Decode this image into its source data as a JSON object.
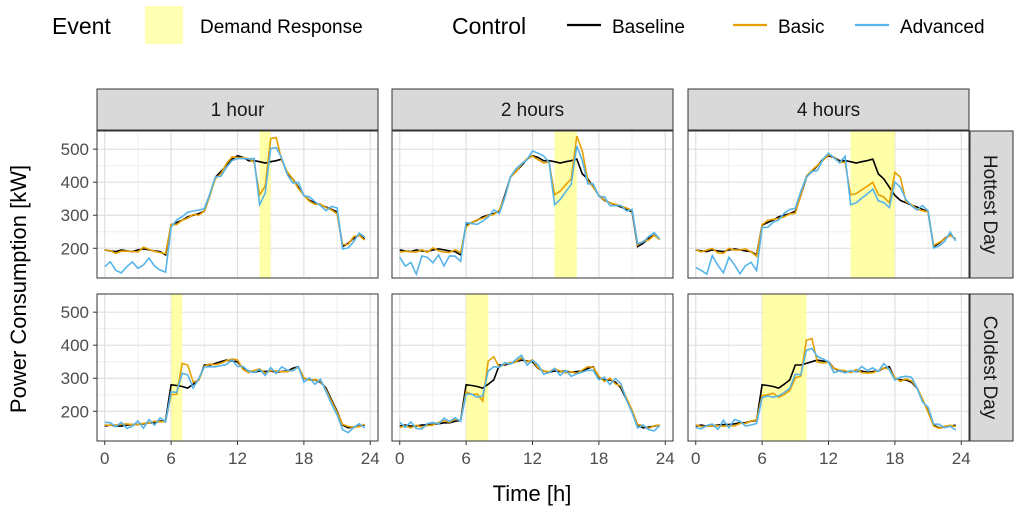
{
  "legend": {
    "event_title": "Event",
    "event_label": "Demand Response",
    "control_title": "Control",
    "items": [
      {
        "label": "Baseline",
        "color": "#000000"
      },
      {
        "label": "Basic",
        "color": "#E69F00"
      },
      {
        "label": "Advanced",
        "color": "#56B4E9"
      }
    ]
  },
  "chart_data": {
    "type": "line",
    "xlabel": "Time [h]",
    "ylabel": "Power Consumption [kW]",
    "xlim": [
      -0.7,
      24.7
    ],
    "ylim": [
      110,
      555
    ],
    "xticks": [
      0,
      6,
      12,
      18,
      24
    ],
    "yticks": [
      200,
      300,
      400,
      500
    ],
    "grid": true,
    "legend_position": "top",
    "event_color": "#FFFF99",
    "columns": [
      "1 hour",
      "2 hours",
      "4 hours"
    ],
    "rows": [
      "Hottest Day",
      "Coldest Day"
    ],
    "events": {
      "1 hour": [
        6,
        7
      ],
      "2 hours": [
        6,
        8
      ],
      "4 hours": [
        6,
        10
      ],
      "hot": {
        "1 hour": [
          14,
          15
        ],
        "2 hours": [
          14,
          16
        ],
        "4 hours": [
          14,
          18
        ]
      }
    },
    "x": [
      0,
      0.5,
      1,
      1.5,
      2,
      2.5,
      3,
      3.5,
      4,
      4.5,
      5,
      5.5,
      6,
      6.5,
      7,
      7.5,
      8,
      8.5,
      9,
      9.5,
      10,
      10.5,
      11,
      11.5,
      12,
      12.5,
      13,
      13.5,
      14,
      14.5,
      15,
      15.5,
      16,
      16.5,
      17,
      17.5,
      18,
      18.5,
      19,
      19.5,
      20,
      20.5,
      21,
      21.5,
      22,
      22.5,
      23,
      23.5
    ],
    "hot_baseline": [
      195,
      192,
      190,
      195,
      192,
      190,
      195,
      198,
      195,
      192,
      190,
      180,
      270,
      278,
      285,
      295,
      300,
      305,
      312,
      360,
      415,
      432,
      450,
      470,
      480,
      475,
      465,
      465,
      462,
      458,
      462,
      465,
      470,
      425,
      410,
      385,
      360,
      345,
      338,
      330,
      325,
      318,
      310,
      205,
      215,
      230,
      240,
      228
    ],
    "cold_baseline": [
      155,
      158,
      155,
      155,
      158,
      160,
      160,
      162,
      165,
      165,
      170,
      172,
      280,
      278,
      275,
      270,
      282,
      295,
      340,
      340,
      345,
      350,
      355,
      352,
      350,
      330,
      322,
      318,
      322,
      320,
      322,
      318,
      320,
      322,
      330,
      335,
      300,
      295,
      295,
      288,
      270,
      235,
      200,
      158,
      150,
      152,
      155,
      158
    ]
  }
}
